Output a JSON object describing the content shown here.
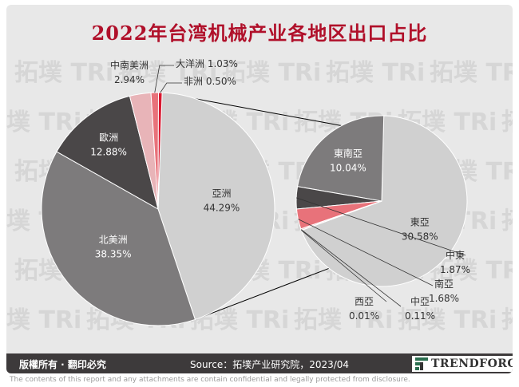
{
  "title": "2022年台湾机械产业各地区出口占比",
  "colors": {
    "background": "#e8e8e8",
    "title": "#b0102a",
    "footer": "#3d3a3b",
    "slice_light": "#d0d0d0",
    "slice_mid": "#7d7b7c",
    "slice_dark": "#4a4748",
    "slice_pink": "#e8b4b8",
    "slice_red": "#e8727a",
    "slice_crimson": "#d8172f"
  },
  "watermark": {
    "text": "拓墣 TRi"
  },
  "chart_data": [
    {
      "type": "pie",
      "title": "",
      "slices": [
        {
          "label": "亞洲",
          "value": 44.29,
          "display": "44.29%",
          "color": "#d0d0d0"
        },
        {
          "label": "北美洲",
          "value": 38.35,
          "display": "38.35%",
          "color": "#7d7b7c"
        },
        {
          "label": "歐洲",
          "value": 12.88,
          "display": "12.88%",
          "color": "#4a4748"
        },
        {
          "label": "中南美洲",
          "value": 2.94,
          "display": "2.94%",
          "color": "#e8b4b8"
        },
        {
          "label": "大洋洲",
          "value": 1.03,
          "display": "1.03%",
          "color": "#e8727a"
        },
        {
          "label": "非洲",
          "value": 0.5,
          "display": "0.50%",
          "color": "#d8172f"
        }
      ]
    },
    {
      "type": "pie",
      "title": "",
      "breakdown_of": "亞洲",
      "slices": [
        {
          "label": "東亞",
          "value": 30.58,
          "display": "30.58%",
          "color": "#d0d0d0"
        },
        {
          "label": "東南亞",
          "value": 10.04,
          "display": "10.04%",
          "color": "#7d7b7c"
        },
        {
          "label": "中東",
          "value": 1.87,
          "display": "1.87%",
          "color": "#4a4748"
        },
        {
          "label": "南亞",
          "value": 1.68,
          "display": "1.68%",
          "color": "#e8727a"
        },
        {
          "label": "中亞",
          "value": 0.11,
          "display": "0.11%",
          "color": "#e8b4b8"
        },
        {
          "label": "西亞",
          "value": 0.01,
          "display": "0.01%",
          "color": "#d8172f"
        }
      ]
    }
  ],
  "footer": {
    "copyright": "版權所有 · 翻印必究",
    "source": "Source：拓墣产业研究院，2023/04",
    "logo_text": "TRENDFORCE"
  },
  "disclaimer": "The contents of this report and any attachments are contain confidential and legally protected from disclosure."
}
